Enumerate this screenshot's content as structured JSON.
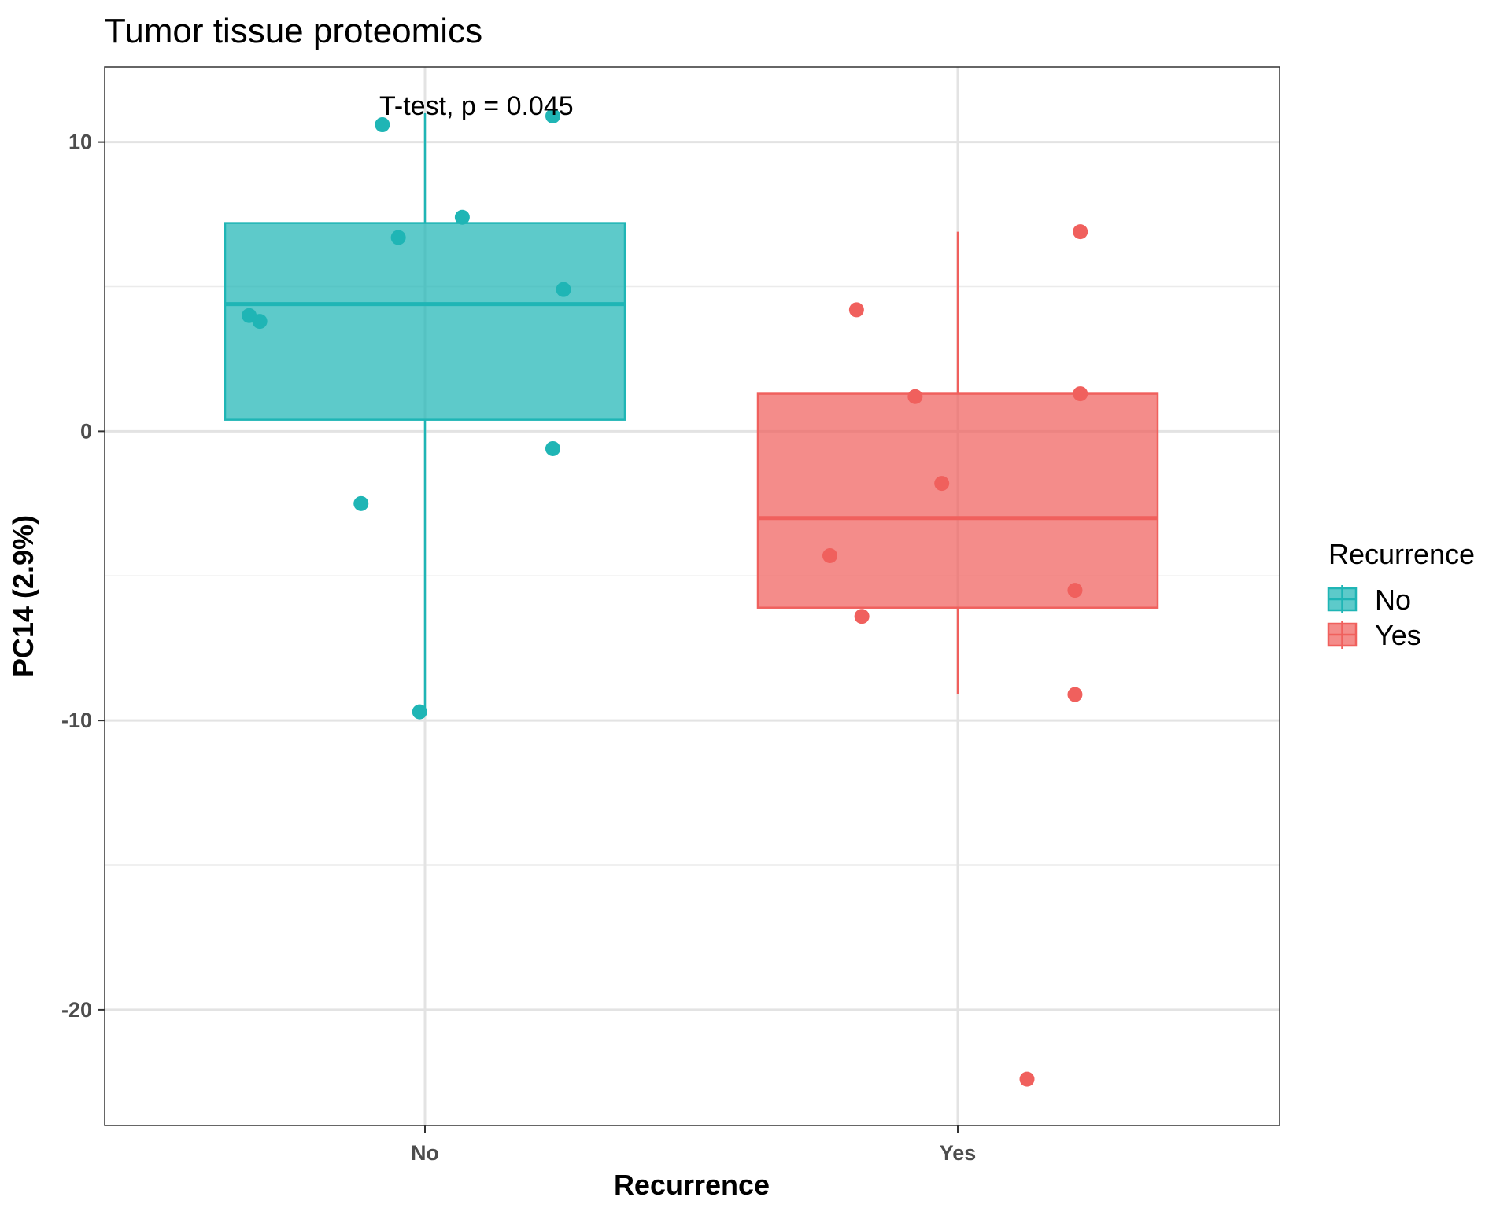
{
  "chart_data": {
    "type": "box",
    "title": "Tumor tissue proteomics",
    "xlabel": "Recurrence",
    "ylabel": "PC14 (2.9%)",
    "ylim": [
      -24,
      12.6
    ],
    "yticks": [
      10,
      0,
      -10,
      -20
    ],
    "ytick_labels": [
      "10",
      "0",
      "-10",
      "-20"
    ],
    "grid": true,
    "annotation": "T-test, p = 0.045",
    "legend": {
      "title": "Recurrence",
      "placement": "right",
      "entries": [
        "No",
        "Yes"
      ]
    },
    "colors": {
      "No": "#1fb5b5",
      "Yes": "#f0605d"
    },
    "categories": [
      "No",
      "Yes"
    ],
    "boxes": [
      {
        "category": "No",
        "q1": 0.4,
        "median": 4.4,
        "q3": 7.2,
        "whisker_low": -9.7,
        "whisker_high": 11.0
      },
      {
        "category": "Yes",
        "q1": -6.1,
        "median": -3.0,
        "q3": 1.3,
        "whisker_low": -9.1,
        "whisker_high": 6.9
      }
    ],
    "points": [
      {
        "category": "No",
        "jitter": -0.33,
        "y": 4.0
      },
      {
        "category": "No",
        "jitter": -0.31,
        "y": 3.8
      },
      {
        "category": "No",
        "jitter": -0.08,
        "y": 10.6
      },
      {
        "category": "No",
        "jitter": -0.05,
        "y": 6.7
      },
      {
        "category": "No",
        "jitter": 0.07,
        "y": 7.4
      },
      {
        "category": "No",
        "jitter": 0.24,
        "y": 10.9
      },
      {
        "category": "No",
        "jitter": 0.26,
        "y": 4.9
      },
      {
        "category": "No",
        "jitter": 0.24,
        "y": -0.6
      },
      {
        "category": "No",
        "jitter": -0.12,
        "y": -2.5
      },
      {
        "category": "No",
        "jitter": -0.01,
        "y": -9.7
      },
      {
        "category": "Yes",
        "jitter": -0.19,
        "y": 4.2
      },
      {
        "category": "Yes",
        "jitter": -0.08,
        "y": 1.2
      },
      {
        "category": "Yes",
        "jitter": -0.03,
        "y": -1.8
      },
      {
        "category": "Yes",
        "jitter": -0.24,
        "y": -4.3
      },
      {
        "category": "Yes",
        "jitter": -0.18,
        "y": -6.4
      },
      {
        "category": "Yes",
        "jitter": 0.23,
        "y": 6.9
      },
      {
        "category": "Yes",
        "jitter": 0.23,
        "y": 1.3
      },
      {
        "category": "Yes",
        "jitter": 0.22,
        "y": -5.5
      },
      {
        "category": "Yes",
        "jitter": 0.22,
        "y": -9.1
      },
      {
        "category": "Yes",
        "jitter": 0.13,
        "y": -22.4
      }
    ]
  }
}
